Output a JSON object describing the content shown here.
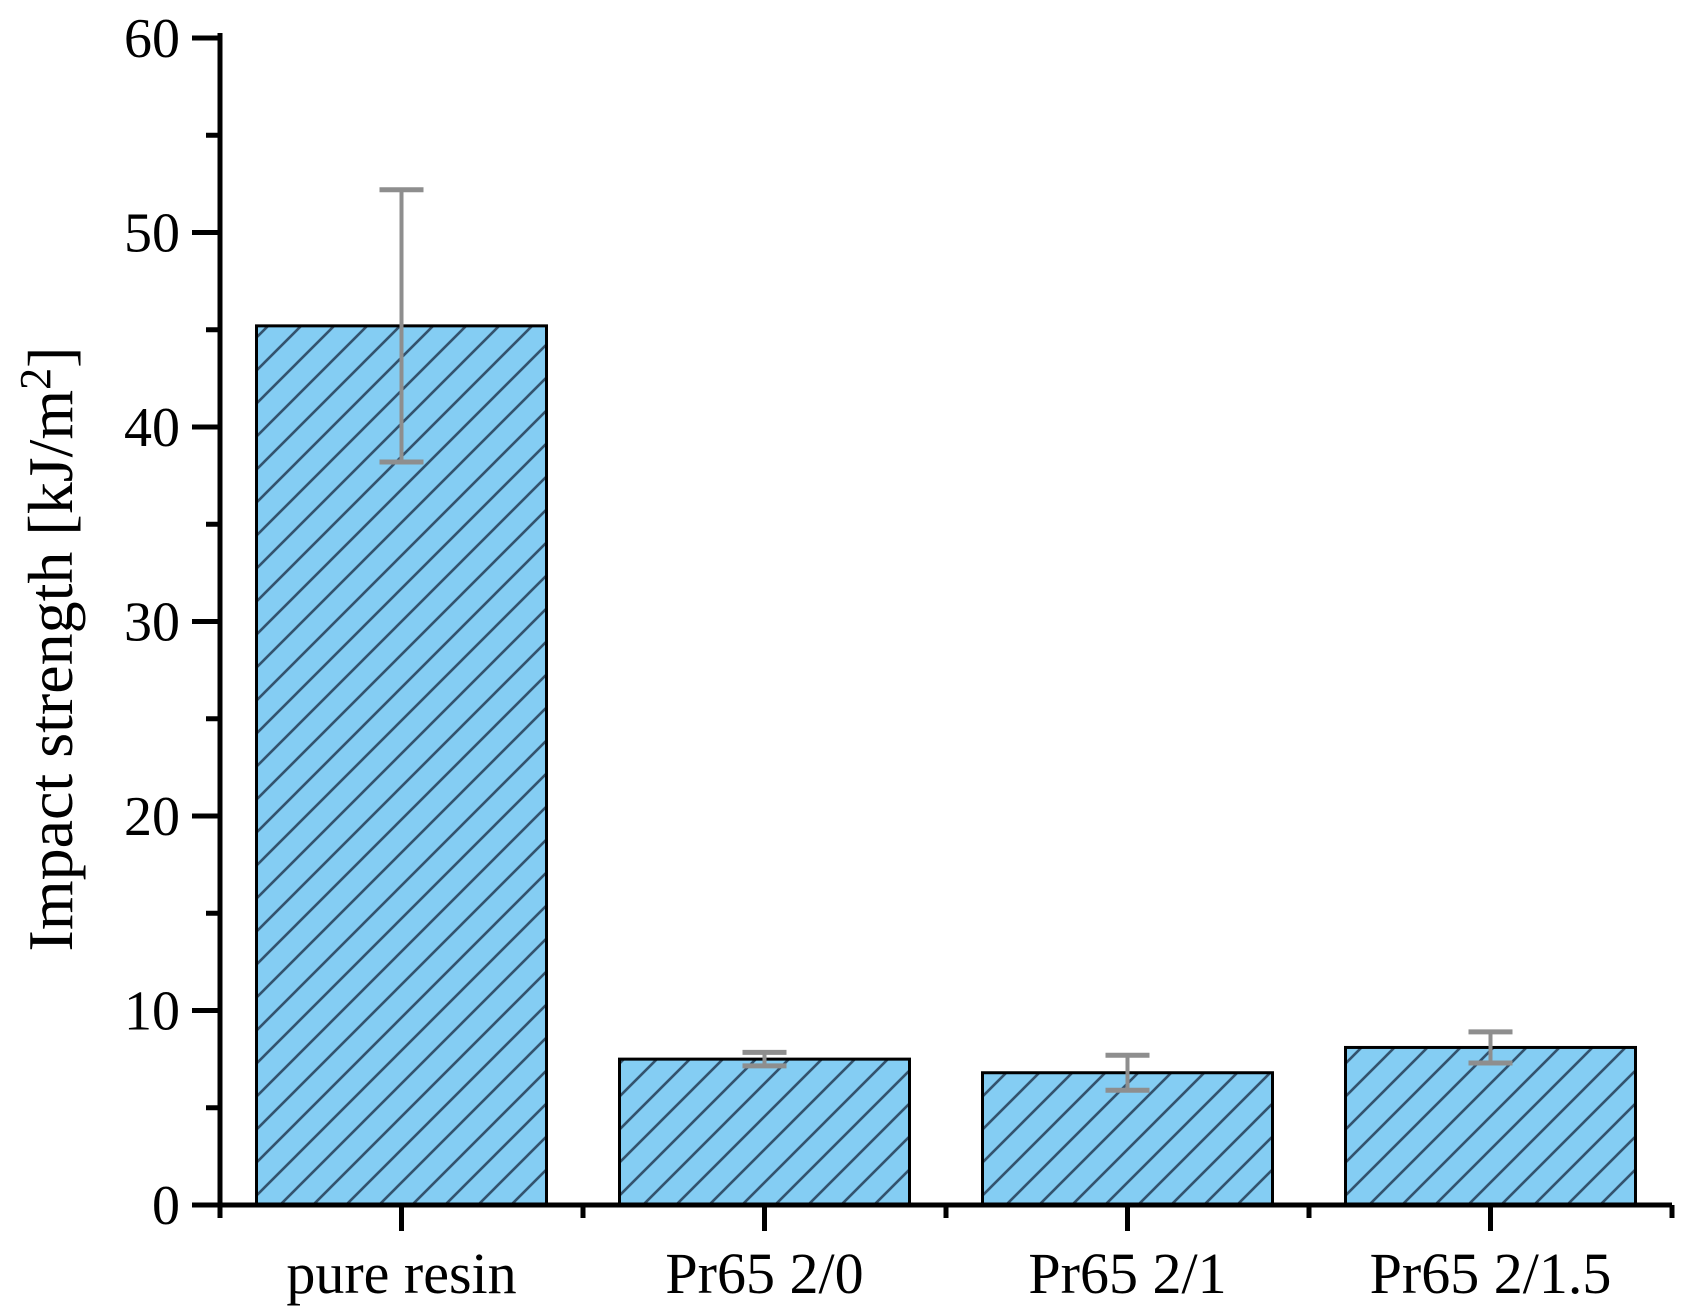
{
  "chart_data": {
    "type": "bar",
    "title": "",
    "categories": [
      "pure resin",
      "Pr65 2/0",
      "Pr65 2/1",
      "Pr65 2/1.5"
    ],
    "values": [
      45.2,
      7.5,
      6.8,
      8.1
    ],
    "errors": [
      7.0,
      0.35,
      0.9,
      0.8
    ],
    "ylabel_main": "Impact strength [kJ/m",
    "ylabel_sup": "2",
    "ylabel_close": "]",
    "xlabel": "",
    "yticks": [
      0,
      10,
      20,
      30,
      40,
      50,
      60
    ],
    "ytick_minor_step": 5,
    "ylim": [
      0,
      60
    ],
    "grid": false,
    "legend": "none",
    "bar_hatch": "diagonal-forward",
    "colors": {
      "bar_fill": "#84cdf3",
      "hatch_line": "#33536e",
      "bar_outline": "#000000",
      "error_bar": "#8e8e8e",
      "axis": "#000000",
      "text": "#000000",
      "background": "#ffffff"
    }
  }
}
